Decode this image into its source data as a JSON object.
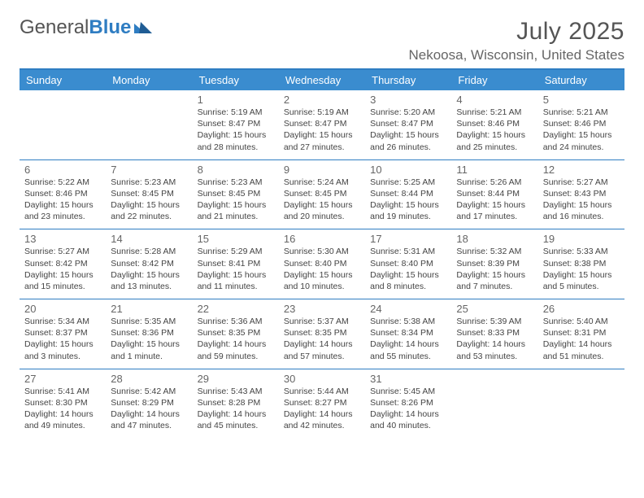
{
  "brand": {
    "part1": "General",
    "part2": "Blue"
  },
  "title": "July 2025",
  "location": "Nekoosa, Wisconsin, United States",
  "colors": {
    "header_bg": "#3a8ccf",
    "rule": "#2f7dc2",
    "text": "#444444",
    "muted": "#666666"
  },
  "weekdays": [
    "Sunday",
    "Monday",
    "Tuesday",
    "Wednesday",
    "Thursday",
    "Friday",
    "Saturday"
  ],
  "weeks": [
    [
      null,
      null,
      {
        "n": "1",
        "sr": "5:19 AM",
        "ss": "8:47 PM",
        "d": "15 hours and 28 minutes."
      },
      {
        "n": "2",
        "sr": "5:19 AM",
        "ss": "8:47 PM",
        "d": "15 hours and 27 minutes."
      },
      {
        "n": "3",
        "sr": "5:20 AM",
        "ss": "8:47 PM",
        "d": "15 hours and 26 minutes."
      },
      {
        "n": "4",
        "sr": "5:21 AM",
        "ss": "8:46 PM",
        "d": "15 hours and 25 minutes."
      },
      {
        "n": "5",
        "sr": "5:21 AM",
        "ss": "8:46 PM",
        "d": "15 hours and 24 minutes."
      }
    ],
    [
      {
        "n": "6",
        "sr": "5:22 AM",
        "ss": "8:46 PM",
        "d": "15 hours and 23 minutes."
      },
      {
        "n": "7",
        "sr": "5:23 AM",
        "ss": "8:45 PM",
        "d": "15 hours and 22 minutes."
      },
      {
        "n": "8",
        "sr": "5:23 AM",
        "ss": "8:45 PM",
        "d": "15 hours and 21 minutes."
      },
      {
        "n": "9",
        "sr": "5:24 AM",
        "ss": "8:45 PM",
        "d": "15 hours and 20 minutes."
      },
      {
        "n": "10",
        "sr": "5:25 AM",
        "ss": "8:44 PM",
        "d": "15 hours and 19 minutes."
      },
      {
        "n": "11",
        "sr": "5:26 AM",
        "ss": "8:44 PM",
        "d": "15 hours and 17 minutes."
      },
      {
        "n": "12",
        "sr": "5:27 AM",
        "ss": "8:43 PM",
        "d": "15 hours and 16 minutes."
      }
    ],
    [
      {
        "n": "13",
        "sr": "5:27 AM",
        "ss": "8:42 PM",
        "d": "15 hours and 15 minutes."
      },
      {
        "n": "14",
        "sr": "5:28 AM",
        "ss": "8:42 PM",
        "d": "15 hours and 13 minutes."
      },
      {
        "n": "15",
        "sr": "5:29 AM",
        "ss": "8:41 PM",
        "d": "15 hours and 11 minutes."
      },
      {
        "n": "16",
        "sr": "5:30 AM",
        "ss": "8:40 PM",
        "d": "15 hours and 10 minutes."
      },
      {
        "n": "17",
        "sr": "5:31 AM",
        "ss": "8:40 PM",
        "d": "15 hours and 8 minutes."
      },
      {
        "n": "18",
        "sr": "5:32 AM",
        "ss": "8:39 PM",
        "d": "15 hours and 7 minutes."
      },
      {
        "n": "19",
        "sr": "5:33 AM",
        "ss": "8:38 PM",
        "d": "15 hours and 5 minutes."
      }
    ],
    [
      {
        "n": "20",
        "sr": "5:34 AM",
        "ss": "8:37 PM",
        "d": "15 hours and 3 minutes."
      },
      {
        "n": "21",
        "sr": "5:35 AM",
        "ss": "8:36 PM",
        "d": "15 hours and 1 minute."
      },
      {
        "n": "22",
        "sr": "5:36 AM",
        "ss": "8:35 PM",
        "d": "14 hours and 59 minutes."
      },
      {
        "n": "23",
        "sr": "5:37 AM",
        "ss": "8:35 PM",
        "d": "14 hours and 57 minutes."
      },
      {
        "n": "24",
        "sr": "5:38 AM",
        "ss": "8:34 PM",
        "d": "14 hours and 55 minutes."
      },
      {
        "n": "25",
        "sr": "5:39 AM",
        "ss": "8:33 PM",
        "d": "14 hours and 53 minutes."
      },
      {
        "n": "26",
        "sr": "5:40 AM",
        "ss": "8:31 PM",
        "d": "14 hours and 51 minutes."
      }
    ],
    [
      {
        "n": "27",
        "sr": "5:41 AM",
        "ss": "8:30 PM",
        "d": "14 hours and 49 minutes."
      },
      {
        "n": "28",
        "sr": "5:42 AM",
        "ss": "8:29 PM",
        "d": "14 hours and 47 minutes."
      },
      {
        "n": "29",
        "sr": "5:43 AM",
        "ss": "8:28 PM",
        "d": "14 hours and 45 minutes."
      },
      {
        "n": "30",
        "sr": "5:44 AM",
        "ss": "8:27 PM",
        "d": "14 hours and 42 minutes."
      },
      {
        "n": "31",
        "sr": "5:45 AM",
        "ss": "8:26 PM",
        "d": "14 hours and 40 minutes."
      },
      null,
      null
    ]
  ],
  "labels": {
    "sunrise": "Sunrise:",
    "sunset": "Sunset:",
    "daylight": "Daylight:"
  }
}
